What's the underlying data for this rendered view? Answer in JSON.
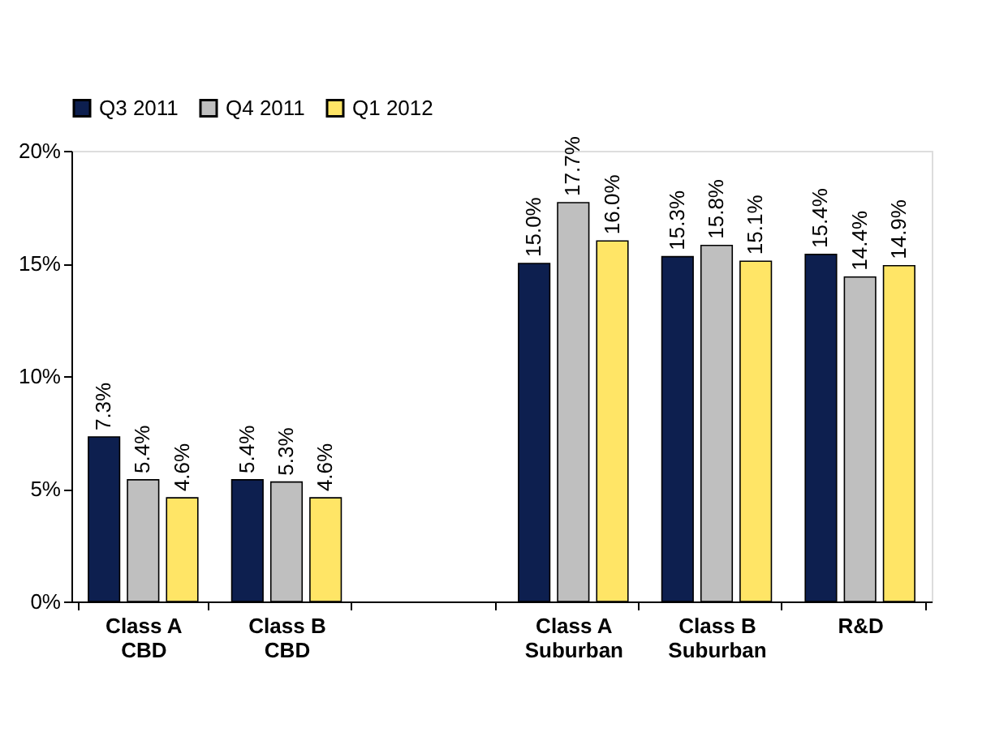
{
  "chart_data": {
    "type": "bar",
    "categories": [
      "Class A CBD",
      "Class B CBD",
      null,
      "Class A Suburban",
      "Class B Suburban",
      "R&D"
    ],
    "series": [
      {
        "name": "Q3 2011",
        "color": "#0d1f4f",
        "values": [
          7.3,
          5.4,
          null,
          15.0,
          15.3,
          15.4
        ],
        "value_labels": [
          "7.3%",
          "5.4%",
          null,
          "15.0%",
          "15.3%",
          "15.4%"
        ]
      },
      {
        "name": "Q4 2011",
        "color": "#bfbfbf",
        "values": [
          5.4,
          5.3,
          null,
          17.7,
          15.8,
          14.4
        ],
        "value_labels": [
          "5.4%",
          "5.3%",
          null,
          "17.7%",
          "15.8%",
          "14.4%"
        ]
      },
      {
        "name": "Q1 2012",
        "color": "#ffe566",
        "values": [
          4.6,
          4.6,
          null,
          16.0,
          15.1,
          14.9
        ],
        "value_labels": [
          "4.6%",
          "4.6%",
          null,
          "16.0%",
          "15.1%",
          "14.9%"
        ]
      }
    ],
    "ylim": [
      0,
      20
    ],
    "yticks": [
      {
        "value": 0,
        "label": "0%"
      },
      {
        "value": 5,
        "label": "5%"
      },
      {
        "value": 10,
        "label": "10%"
      },
      {
        "value": 15,
        "label": "15%"
      },
      {
        "value": 20,
        "label": "20%"
      }
    ],
    "grid": false,
    "legend": "top"
  }
}
